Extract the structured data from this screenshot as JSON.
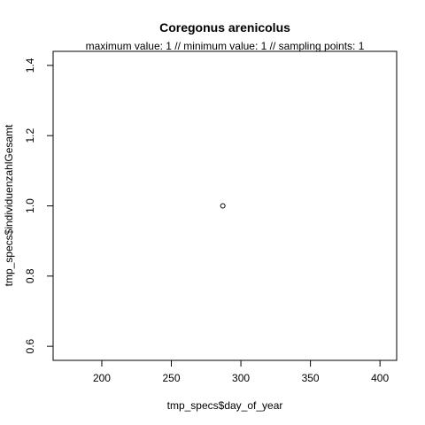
{
  "colors": {
    "background": "#ffffff",
    "axis": "#000000",
    "point": "#000000"
  },
  "chart_data": {
    "type": "scatter",
    "title": "Coregonus arenicolus",
    "subtitle": "maximum value: 1  //  minimum value: 1  // sampling points: 1",
    "xlabel": "tmp_specs$day_of_year",
    "ylabel": "tmp_specs$individuenzahlGesamt",
    "xlim": [
      165,
      412
    ],
    "ylim": [
      0.56,
      1.44
    ],
    "x_ticks": [
      200,
      250,
      300,
      350,
      400
    ],
    "y_ticks": [
      0.6,
      0.8,
      1.0,
      1.2,
      1.4
    ],
    "x_tick_labels": [
      "200",
      "250",
      "300",
      "350",
      "400"
    ],
    "y_tick_labels": [
      "0.6",
      "0.8",
      "1.0",
      "1.2",
      "1.4"
    ],
    "marker": "open-circle",
    "grid": false,
    "series": [
      {
        "x": [
          287
        ],
        "y": [
          1
        ]
      }
    ]
  }
}
